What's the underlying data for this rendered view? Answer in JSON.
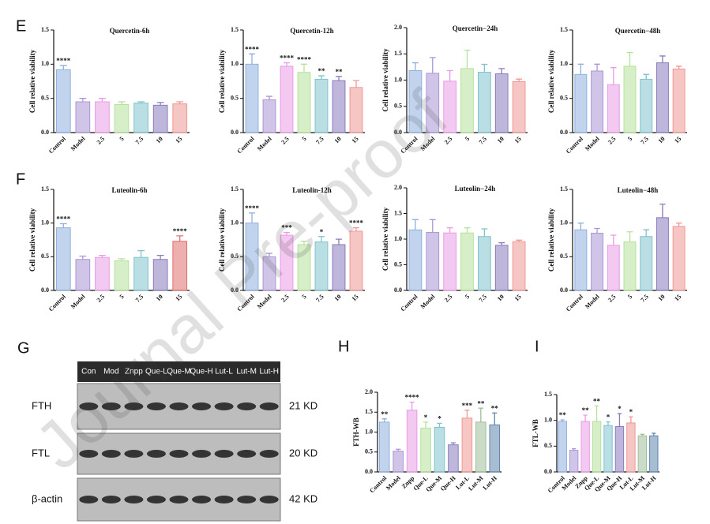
{
  "watermark": "Journal Pre-proof",
  "panel_labels": [
    "E",
    "F",
    "G",
    "H",
    "I"
  ],
  "blot": {
    "lanes": [
      "Con",
      "Mod",
      "Znpp",
      "Que-L",
      "Que-M",
      "Que-H",
      "Lut-L",
      "Lut-M",
      "Lut-H"
    ],
    "rows": [
      {
        "name": "FTH",
        "size": "21 KD"
      },
      {
        "name": "FTL",
        "size": "20 KD"
      },
      {
        "name": "β-actin",
        "size": "42 KD"
      }
    ]
  },
  "chart_data": [
    {
      "type": "bar",
      "title": "Quercetin-6h",
      "ylabel": "Cell relative viability",
      "categories": [
        "Control",
        "Model",
        "2.5",
        "5",
        "7.5",
        "10",
        "15"
      ],
      "values": [
        0.92,
        0.45,
        0.45,
        0.41,
        0.43,
        0.4,
        0.42
      ],
      "errors": [
        0.06,
        0.05,
        0.05,
        0.04,
        0.02,
        0.04,
        0.03
      ],
      "annotations": [
        "****",
        null,
        null,
        null,
        null,
        null,
        null
      ],
      "colors": [
        "#8fb0de",
        "#a996d6",
        "#e99be6",
        "#b6e19a",
        "#7fc2cc",
        "#8a7bbd",
        "#ef9894"
      ],
      "ylim": [
        0,
        1.5
      ],
      "yticks": [
        {
          "value": 0,
          "label": "0.0"
        },
        0.5,
        {
          "value": 1,
          "label": "1.0"
        },
        1.5
      ]
    },
    {
      "type": "bar",
      "title": "Quercetin-12h",
      "ylabel": "Cell relative viability",
      "categories": [
        "Control",
        "Model",
        "2.5",
        "5",
        "7.5",
        "10",
        "15"
      ],
      "values": [
        1.0,
        0.48,
        0.97,
        0.88,
        0.78,
        0.76,
        0.66
      ],
      "errors": [
        0.15,
        0.05,
        0.05,
        0.12,
        0.05,
        0.06,
        0.1
      ],
      "annotations": [
        "****",
        null,
        "****",
        "****",
        "**",
        "**",
        null
      ],
      "colors": [
        "#8fb0de",
        "#a996d6",
        "#e99be6",
        "#b6e19a",
        "#7fc2cc",
        "#8a7bbd",
        "#ef9894"
      ],
      "ylim": [
        0,
        1.5
      ],
      "yticks": [
        {
          "value": 0,
          "label": "0.0"
        },
        0.5,
        {
          "value": 1,
          "label": "1.0"
        },
        1.5
      ]
    },
    {
      "type": "bar",
      "title": "Quercetin−24h",
      "ylabel": "Cell relative viability",
      "categories": [
        "Control",
        "Model",
        "2.5",
        "5",
        "7.5",
        "10",
        "15"
      ],
      "values": [
        1.18,
        1.13,
        0.98,
        1.22,
        1.15,
        1.12,
        0.97
      ],
      "errors": [
        0.15,
        0.3,
        0.2,
        0.35,
        0.15,
        0.1,
        0.05
      ],
      "annotations": [
        null,
        null,
        null,
        null,
        null,
        null,
        null
      ],
      "colors": [
        "#8fb0de",
        "#a996d6",
        "#e99be6",
        "#b6e19a",
        "#7fc2cc",
        "#8a7bbd",
        "#ef9894"
      ],
      "ylim": [
        0,
        2
      ],
      "yticks": [
        {
          "value": 0,
          "label": "0.0"
        },
        0.5,
        {
          "value": 1,
          "label": "1.0"
        },
        1.5,
        {
          "value": 2,
          "label": "2.0"
        }
      ]
    },
    {
      "type": "bar",
      "title": "Quercetin−48h",
      "ylabel": "Cell relative viability",
      "categories": [
        "Control",
        "Model",
        "2.5",
        "5",
        "7.5",
        "10",
        "15"
      ],
      "values": [
        0.85,
        0.9,
        0.7,
        0.97,
        0.78,
        1.02,
        0.93
      ],
      "errors": [
        0.15,
        0.1,
        0.25,
        0.2,
        0.07,
        0.1,
        0.04
      ],
      "annotations": [
        null,
        null,
        null,
        null,
        null,
        null,
        null
      ],
      "colors": [
        "#8fb0de",
        "#a996d6",
        "#e99be6",
        "#b6e19a",
        "#7fc2cc",
        "#8a7bbd",
        "#ef9894"
      ],
      "ylim": [
        0,
        1.5
      ],
      "yticks": [
        {
          "value": 0,
          "label": "0.0"
        },
        0.5,
        {
          "value": 1,
          "label": "1.0"
        },
        1.5
      ]
    },
    {
      "type": "bar",
      "title": "Luteolin-6h",
      "ylabel": "Cell relative viability",
      "categories": [
        "Control",
        "Model",
        "2.5",
        "5",
        "7.5",
        "10",
        "15"
      ],
      "values": [
        0.93,
        0.46,
        0.49,
        0.44,
        0.49,
        0.46,
        0.73
      ],
      "errors": [
        0.06,
        0.05,
        0.03,
        0.03,
        0.1,
        0.06,
        0.08
      ],
      "annotations": [
        "****",
        null,
        null,
        null,
        null,
        null,
        "****"
      ],
      "colors": [
        "#8fb0de",
        "#a996d6",
        "#e99be6",
        "#b6e19a",
        "#7fc2cc",
        "#8a7bbd",
        "#e0706c"
      ],
      "ylim": [
        0,
        1.5
      ],
      "yticks": [
        {
          "value": 0,
          "label": "0.0"
        },
        0.5,
        {
          "value": 1,
          "label": "1.0"
        },
        1.5
      ]
    },
    {
      "type": "bar",
      "title": "Luteolin-12h",
      "ylabel": "Cell relative viability",
      "categories": [
        "Control",
        "Model",
        "2.5",
        "5",
        "7.5",
        "10",
        "15"
      ],
      "values": [
        1.0,
        0.5,
        0.82,
        0.68,
        0.72,
        0.68,
        0.88
      ],
      "errors": [
        0.15,
        0.05,
        0.04,
        0.05,
        0.08,
        0.08,
        0.05
      ],
      "annotations": [
        "****",
        null,
        "***",
        null,
        "*",
        null,
        "****"
      ],
      "colors": [
        "#8fb0de",
        "#a996d6",
        "#e99be6",
        "#b6e19a",
        "#7fc2cc",
        "#8a7bbd",
        "#ef9894"
      ],
      "ylim": [
        0,
        1.5
      ],
      "yticks": [
        {
          "value": 0,
          "label": "0.0"
        },
        0.5,
        {
          "value": 1,
          "label": "1.0"
        },
        1.5
      ]
    },
    {
      "type": "bar",
      "title": "Luteolin−24h",
      "ylabel": "Cell relative viability",
      "categories": [
        "Control",
        "Model",
        "2.5",
        "5",
        "7.5",
        "10",
        "15"
      ],
      "values": [
        1.18,
        1.13,
        1.12,
        1.12,
        1.05,
        0.88,
        0.95
      ],
      "errors": [
        0.2,
        0.25,
        0.1,
        0.1,
        0.15,
        0.05,
        0.03
      ],
      "annotations": [
        null,
        null,
        null,
        null,
        null,
        null,
        null
      ],
      "colors": [
        "#8fb0de",
        "#a996d6",
        "#e99be6",
        "#b6e19a",
        "#7fc2cc",
        "#8a7bbd",
        "#ef9894"
      ],
      "ylim": [
        0,
        2
      ],
      "yticks": [
        {
          "value": 0,
          "label": "0.0"
        },
        0.5,
        {
          "value": 1,
          "label": "1.0"
        },
        1.5,
        {
          "value": 2,
          "label": "2.0"
        }
      ]
    },
    {
      "type": "bar",
      "title": "Luteolin−48h",
      "ylabel": "Cell relative viability",
      "categories": [
        "Control",
        "Model",
        "2.5",
        "5",
        "7.5",
        "10",
        "15"
      ],
      "values": [
        0.9,
        0.85,
        0.67,
        0.72,
        0.8,
        1.08,
        0.95
      ],
      "errors": [
        0.1,
        0.07,
        0.15,
        0.15,
        0.1,
        0.2,
        0.05
      ],
      "annotations": [
        null,
        null,
        null,
        null,
        null,
        null,
        null
      ],
      "colors": [
        "#8fb0de",
        "#a996d6",
        "#e99be6",
        "#b6e19a",
        "#7fc2cc",
        "#8a7bbd",
        "#ef9894"
      ],
      "ylim": [
        0,
        1.5
      ],
      "yticks": [
        {
          "value": 0,
          "label": "0.0"
        },
        0.5,
        {
          "value": 1,
          "label": "1.0"
        },
        1.5
      ]
    },
    {
      "type": "bar",
      "ylabel": "FTH-WB",
      "categories": [
        "Control",
        "Model",
        "Znpp",
        "Que-L",
        "Que-M",
        "Que-H",
        "Lut-L",
        "Lut-M",
        "Lut-H"
      ],
      "values": [
        1.25,
        0.52,
        1.55,
        1.1,
        1.12,
        0.68,
        1.35,
        1.25,
        1.18
      ],
      "errors": [
        0.08,
        0.05,
        0.2,
        0.15,
        0.1,
        0.05,
        0.2,
        0.35,
        0.3
      ],
      "annotations": [
        "**",
        null,
        "****",
        "*",
        "*",
        null,
        "***",
        "**",
        "**"
      ],
      "colors": [
        "#8fb0de",
        "#a996d6",
        "#e99be6",
        "#b6e19a",
        "#7fc2cc",
        "#8a7bbd",
        "#ef9894",
        "#9fbf9a",
        "#5f86ad"
      ],
      "ylim": [
        0,
        2
      ],
      "yticks": [
        {
          "value": 0,
          "label": "0.0"
        },
        0.5,
        {
          "value": 1,
          "label": "1.0"
        },
        1.5,
        {
          "value": 2,
          "label": "2.0"
        }
      ]
    },
    {
      "type": "bar",
      "ylabel": "FTL-WB",
      "categories": [
        "Control",
        "Model",
        "Znpp",
        "Que-L",
        "Que-M",
        "Que-H",
        "Lut-L",
        "Lut-M",
        "Lut-H"
      ],
      "values": [
        0.98,
        0.42,
        0.98,
        0.98,
        0.9,
        0.88,
        0.95,
        0.7,
        0.7
      ],
      "errors": [
        0.03,
        0.03,
        0.12,
        0.3,
        0.07,
        0.25,
        0.12,
        0.03,
        0.05
      ],
      "annotations": [
        "**",
        null,
        "**",
        "**",
        "*",
        "*",
        "*",
        null,
        null
      ],
      "colors": [
        "#8fb0de",
        "#a996d6",
        "#e99be6",
        "#b6e19a",
        "#7fc2cc",
        "#8a7bbd",
        "#ef9894",
        "#9fbf9a",
        "#5f86ad"
      ],
      "ylim": [
        0,
        1.5
      ],
      "yticks": [
        {
          "value": 0,
          "label": "0.0"
        },
        0.5,
        {
          "value": 1,
          "label": "1.0"
        },
        1.5
      ]
    }
  ]
}
